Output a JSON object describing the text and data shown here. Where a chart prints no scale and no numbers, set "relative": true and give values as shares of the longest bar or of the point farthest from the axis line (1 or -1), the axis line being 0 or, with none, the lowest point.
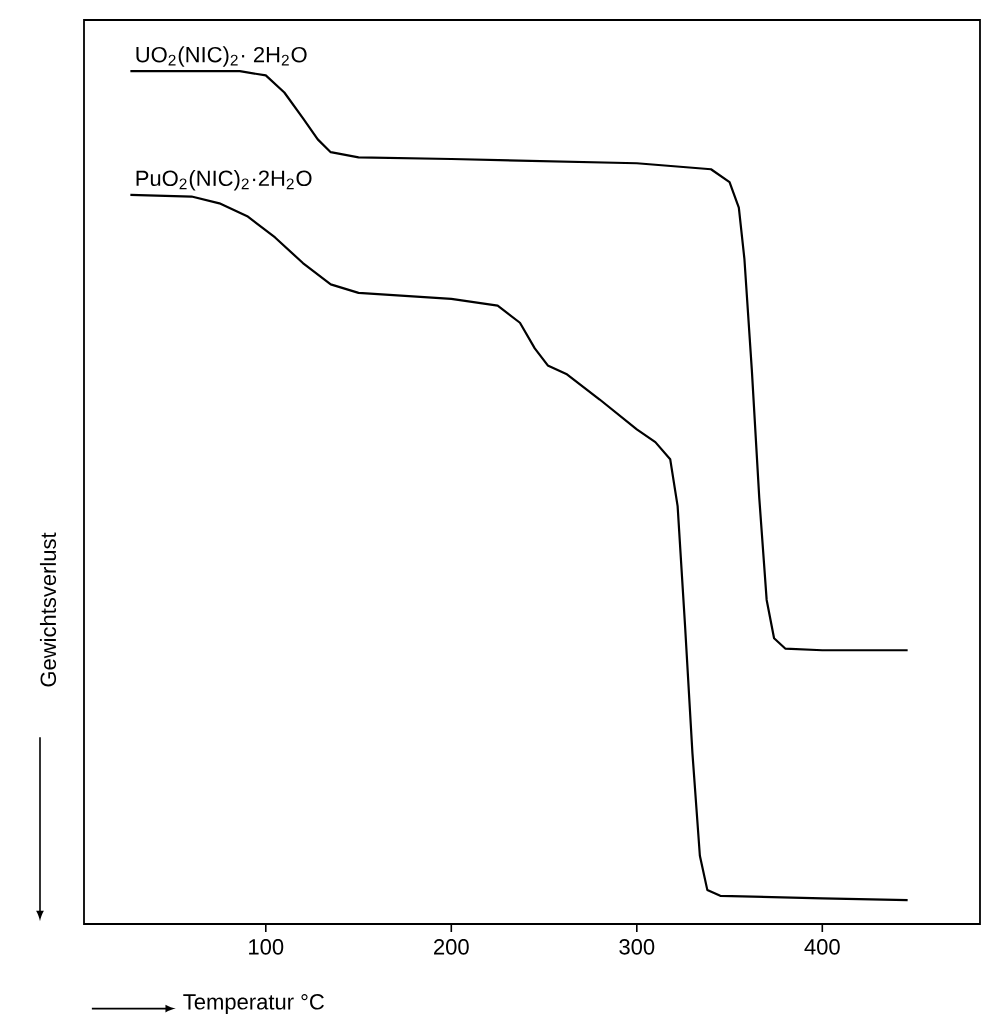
{
  "chart_data": {
    "type": "line",
    "relative": true,
    "xlabel": "Temperatur °C",
    "ylabel": "Gewichtsverlust",
    "xlim": [
      2,
      485
    ],
    "xticks": [
      100,
      200,
      300,
      400
    ],
    "grid": false,
    "marker": "none",
    "line_style": "solid",
    "series": [
      {
        "name": "UO$_{2}$(NIC)$_{2}$· 2H$_{2}$O",
        "color": "#000000",
        "x": [
          27,
          86,
          100,
          110,
          120,
          128,
          135,
          150,
          200,
          300,
          340,
          350,
          355,
          358,
          362,
          366,
          370,
          374,
          380,
          400,
          446
        ],
        "values": [
          1.0,
          1.0,
          0.995,
          0.975,
          0.945,
          0.92,
          0.905,
          0.899,
          0.897,
          0.892,
          0.885,
          0.87,
          0.84,
          0.78,
          0.65,
          0.5,
          0.38,
          0.335,
          0.323,
          0.321,
          0.321
        ]
      },
      {
        "name": "PuO$_{2}$(NIC)$_{2}$·2H$_{2}$O",
        "color": "#000000",
        "x": [
          27,
          60,
          75,
          90,
          105,
          120,
          135,
          150,
          200,
          225,
          237,
          245,
          252,
          262,
          280,
          300,
          310,
          318,
          322,
          326,
          330,
          334,
          338,
          345,
          400,
          446
        ],
        "values": [
          0.855,
          0.853,
          0.845,
          0.83,
          0.805,
          0.775,
          0.75,
          0.74,
          0.733,
          0.725,
          0.705,
          0.675,
          0.655,
          0.645,
          0.615,
          0.58,
          0.565,
          0.545,
          0.49,
          0.35,
          0.2,
          0.08,
          0.04,
          0.033,
          0.03,
          0.028
        ]
      }
    ]
  }
}
